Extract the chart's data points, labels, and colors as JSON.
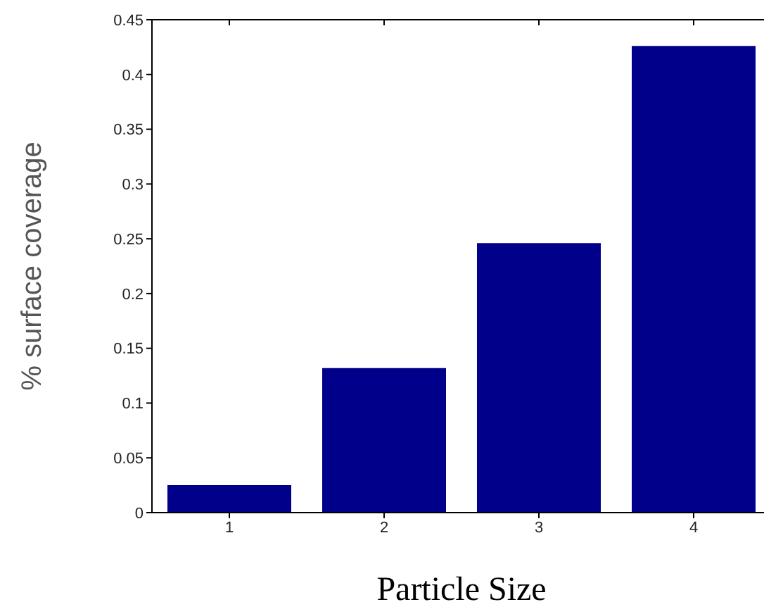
{
  "chart_data": {
    "type": "bar",
    "xlabel": "Particle Size",
    "ylabel": "% surface coverage",
    "categories": [
      "1",
      "2",
      "3",
      "4"
    ],
    "values": [
      0.025,
      0.132,
      0.246,
      0.426
    ],
    "color": "#00008b",
    "ylim": [
      0,
      0.45
    ],
    "yticks": [
      0,
      0.05,
      0.1,
      0.15,
      0.2,
      0.25,
      0.3,
      0.35,
      0.4,
      0.45
    ],
    "grid": false
  }
}
